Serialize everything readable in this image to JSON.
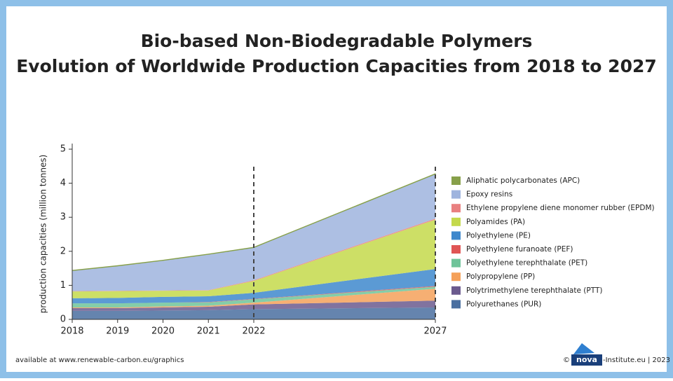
{
  "chart_data": {
    "type": "stacked-area",
    "title": "Bio-based Non-Biodegradable Polymers",
    "subtitle": "Evolution of Worldwide Production Capacities from 2018 to 2027",
    "y_label": "production capacities (million tonnes)",
    "categories": [
      "2018",
      "2019",
      "2020",
      "2021",
      "2022",
      "2027"
    ],
    "ylim": [
      0,
      5
    ],
    "yticks": [
      0,
      1,
      2,
      3,
      4,
      5
    ],
    "series": [
      {
        "name": "Polyurethanes (PUR)",
        "color": "#4a6fa0",
        "values": [
          0.25,
          0.25,
          0.26,
          0.27,
          0.3,
          0.35
        ]
      },
      {
        "name": "Polytrimethylene terephthalate (PTT)",
        "color": "#6b5a8e",
        "values": [
          0.08,
          0.08,
          0.09,
          0.1,
          0.14,
          0.2
        ]
      },
      {
        "name": "Polypropylene (PP)",
        "color": "#f5a15a",
        "values": [
          0.02,
          0.02,
          0.03,
          0.03,
          0.05,
          0.35
        ]
      },
      {
        "name": "Polyethylene terephthalate (PET)",
        "color": "#6fc49a",
        "values": [
          0.12,
          0.12,
          0.11,
          0.1,
          0.1,
          0.06
        ]
      },
      {
        "name": "Polyethylene furanoate (PEF)",
        "color": "#e05555",
        "values": [
          0,
          0,
          0,
          0.01,
          0.01,
          0.02
        ]
      },
      {
        "name": "Polyethylene (PE)",
        "color": "#3e88cc",
        "values": [
          0.15,
          0.16,
          0.17,
          0.17,
          0.18,
          0.5
        ]
      },
      {
        "name": "Polyamides (PA)",
        "color": "#c4d94b",
        "values": [
          0.2,
          0.2,
          0.18,
          0.17,
          0.35,
          1.45
        ]
      },
      {
        "name": "Ethylene propylene diene monomer rubber (EPDM)",
        "color": "#e98080",
        "values": [
          0.01,
          0.01,
          0.01,
          0.01,
          0.02,
          0.03
        ]
      },
      {
        "name": "Epoxy resins",
        "color": "#9fb4de",
        "values": [
          0.6,
          0.73,
          0.88,
          1.05,
          0.96,
          1.31
        ]
      },
      {
        "name": "Aliphatic polycarbonates (APC)",
        "color": "#87a04a",
        "values": [
          0.01,
          0.01,
          0.01,
          0.01,
          0.01,
          0.01
        ]
      }
    ]
  },
  "footer": {
    "source": "available at www.renewable-carbon.eu/graphics",
    "copyright": "©",
    "logo": "nova",
    "credit": "-Institute.eu | 2023"
  }
}
